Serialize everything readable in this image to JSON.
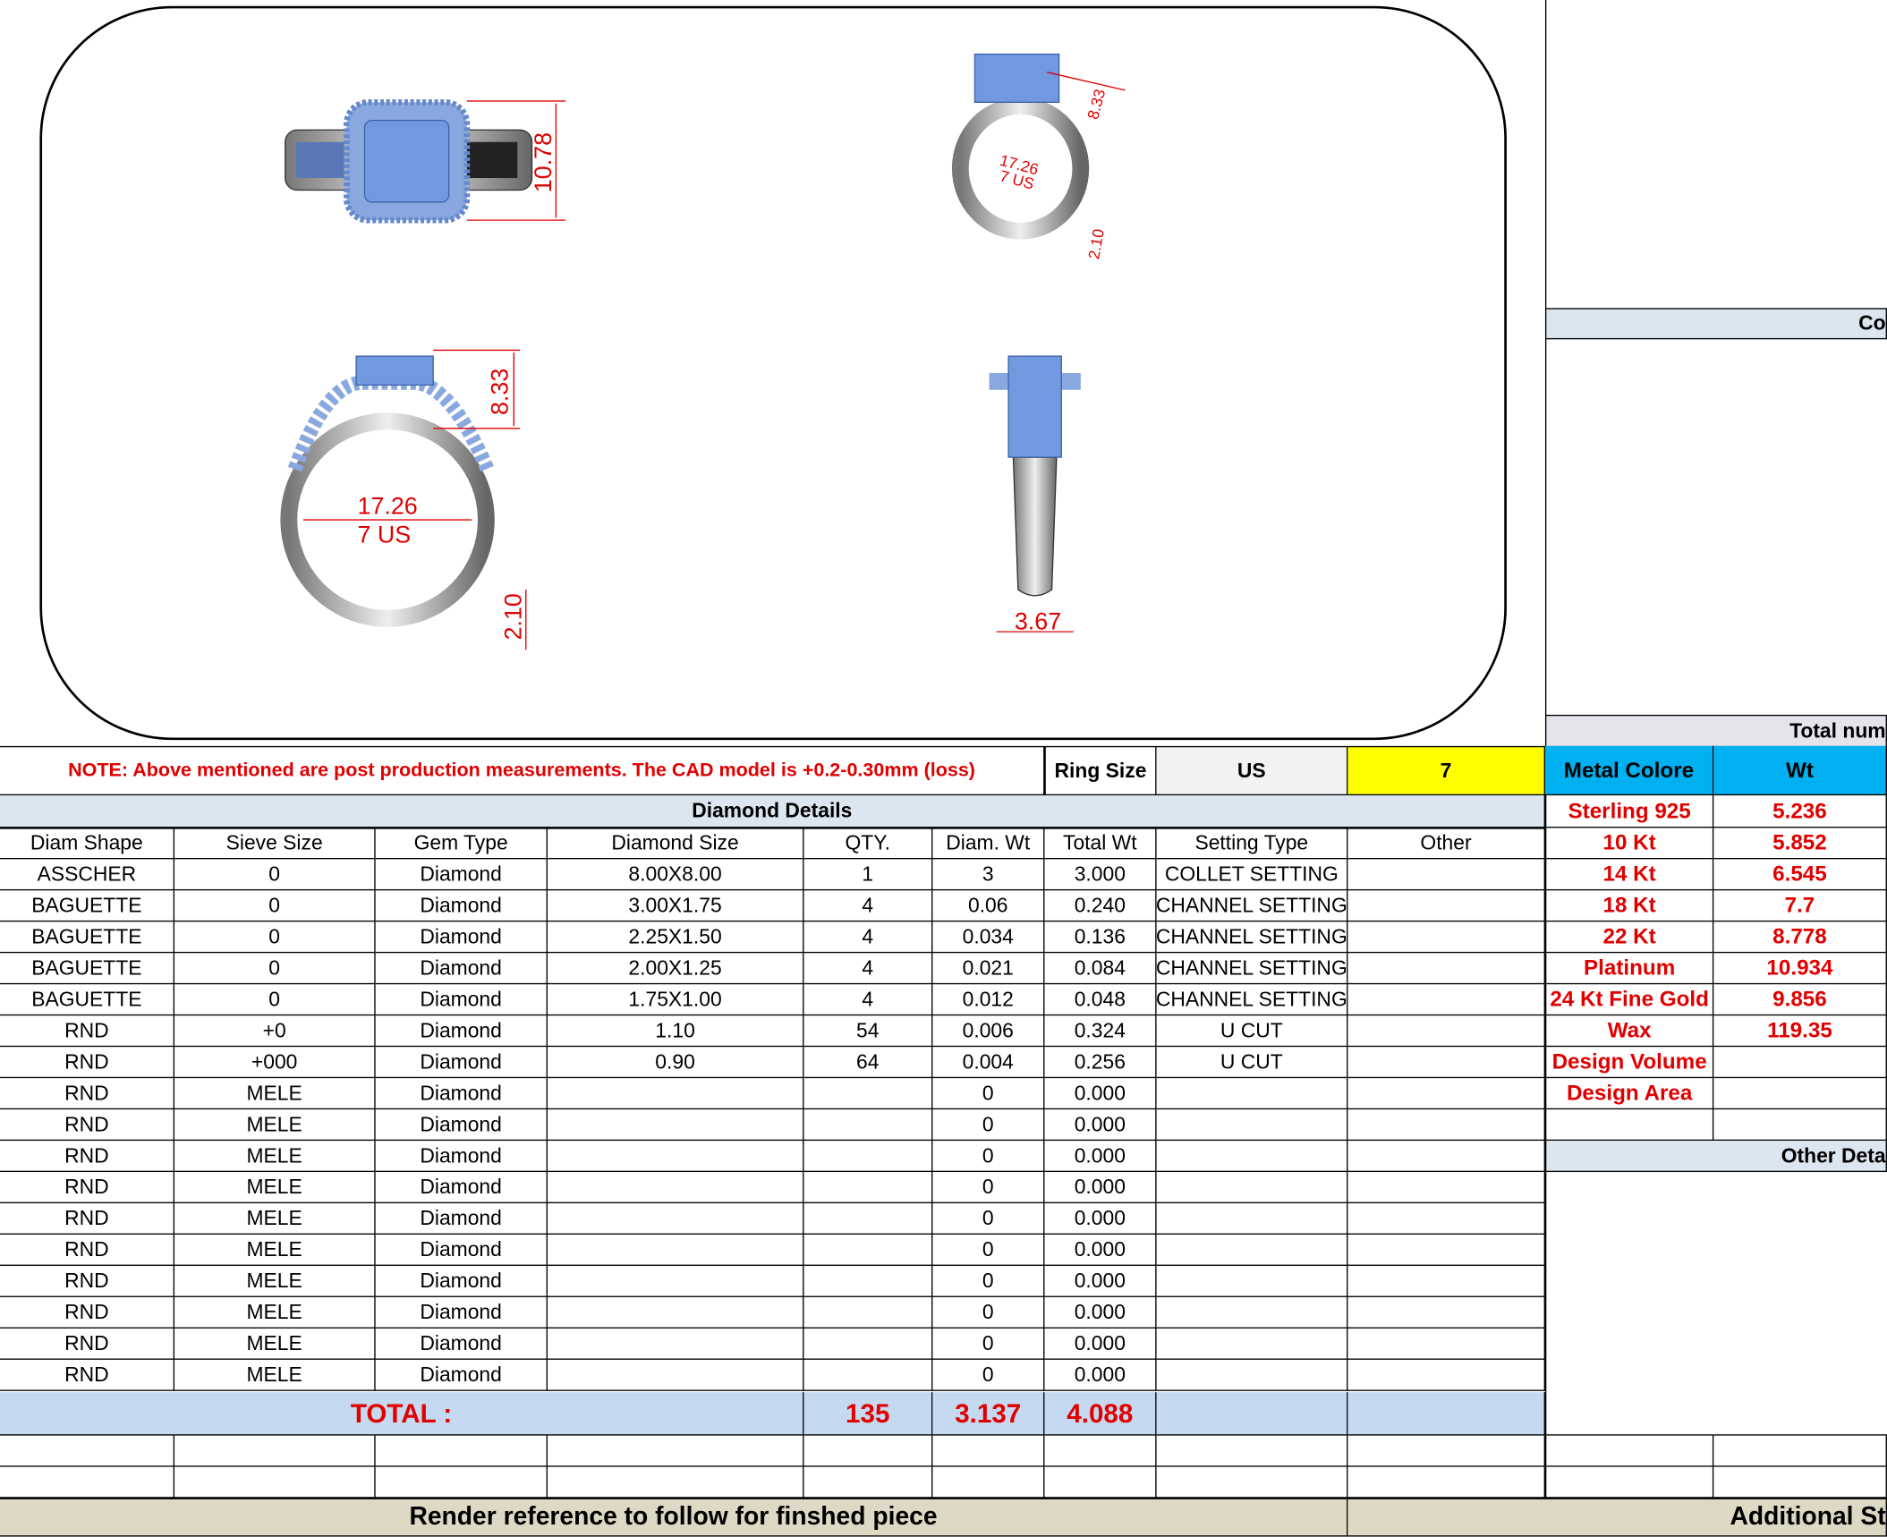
{
  "drawing": {
    "views": [
      {
        "name": "top-view",
        "dims": [
          "10.78"
        ]
      },
      {
        "name": "perspective-view",
        "dims": [
          "8.33",
          "17.26",
          "7 US",
          "2.10"
        ]
      },
      {
        "name": "front-view",
        "dims": [
          "8.33",
          "17.26",
          "7 US",
          "2.10"
        ]
      },
      {
        "name": "side-view",
        "dims": [
          "3.67"
        ]
      }
    ]
  },
  "note": "NOTE: Above mentioned are post production measurements. The CAD model is +0.2-0.30mm (loss)",
  "ring_size": {
    "label": "Ring Size",
    "system": "US",
    "value": "7"
  },
  "diamond_details": {
    "title": "Diamond Details",
    "headers": [
      "Diam Shape",
      "Sieve Size",
      "Gem Type",
      "Diamond Size",
      "QTY.",
      "Diam. Wt",
      "Total Wt",
      "Setting Type",
      "Other"
    ],
    "rows": [
      [
        "ASSCHER",
        "0",
        "Diamond",
        "8.00X8.00",
        "1",
        "3",
        "3.000",
        "COLLET SETTING",
        ""
      ],
      [
        "BAGUETTE",
        "0",
        "Diamond",
        "3.00X1.75",
        "4",
        "0.06",
        "0.240",
        "CHANNEL SETTING",
        ""
      ],
      [
        "BAGUETTE",
        "0",
        "Diamond",
        "2.25X1.50",
        "4",
        "0.034",
        "0.136",
        "CHANNEL SETTING",
        ""
      ],
      [
        "BAGUETTE",
        "0",
        "Diamond",
        "2.00X1.25",
        "4",
        "0.021",
        "0.084",
        "CHANNEL SETTING",
        ""
      ],
      [
        "BAGUETTE",
        "0",
        "Diamond",
        "1.75X1.00",
        "4",
        "0.012",
        "0.048",
        "CHANNEL SETTING",
        ""
      ],
      [
        "RND",
        "+0",
        "Diamond",
        "1.10",
        "54",
        "0.006",
        "0.324",
        "U CUT",
        ""
      ],
      [
        "RND",
        "+000",
        "Diamond",
        "0.90",
        "64",
        "0.004",
        "0.256",
        "U CUT",
        ""
      ],
      [
        "RND",
        "MELE",
        "Diamond",
        "",
        "",
        "0",
        "0.000",
        "",
        ""
      ],
      [
        "RND",
        "MELE",
        "Diamond",
        "",
        "",
        "0",
        "0.000",
        "",
        ""
      ],
      [
        "RND",
        "MELE",
        "Diamond",
        "",
        "",
        "0",
        "0.000",
        "",
        ""
      ],
      [
        "RND",
        "MELE",
        "Diamond",
        "",
        "",
        "0",
        "0.000",
        "",
        ""
      ],
      [
        "RND",
        "MELE",
        "Diamond",
        "",
        "",
        "0",
        "0.000",
        "",
        ""
      ],
      [
        "RND",
        "MELE",
        "Diamond",
        "",
        "",
        "0",
        "0.000",
        "",
        ""
      ],
      [
        "RND",
        "MELE",
        "Diamond",
        "",
        "",
        "0",
        "0.000",
        "",
        ""
      ],
      [
        "RND",
        "MELE",
        "Diamond",
        "",
        "",
        "0",
        "0.000",
        "",
        ""
      ],
      [
        "RND",
        "MELE",
        "Diamond",
        "",
        "",
        "0",
        "0.000",
        "",
        ""
      ],
      [
        "RND",
        "MELE",
        "Diamond",
        "",
        "",
        "0",
        "0.000",
        "",
        ""
      ]
    ],
    "total": {
      "label": "TOTAL :",
      "qty": "135",
      "diam_wt": "3.137",
      "total_wt": "4.088"
    }
  },
  "right_panel": {
    "section_top": "Co",
    "total_number": "Total num",
    "metal_header": [
      "Metal Colore",
      "Wt"
    ],
    "metals": [
      [
        "Sterling 925",
        "5.236"
      ],
      [
        "10 Kt",
        "5.852"
      ],
      [
        "14 Kt",
        "6.545"
      ],
      [
        "18 Kt",
        "7.7"
      ],
      [
        "22 Kt",
        "8.778"
      ],
      [
        "Platinum",
        "10.934"
      ],
      [
        "24 Kt Fine Gold",
        "9.856"
      ],
      [
        "Wax",
        "119.35"
      ],
      [
        "Design Volume",
        ""
      ],
      [
        "Design Area",
        ""
      ],
      [
        "",
        ""
      ]
    ],
    "other_details": "Other Deta"
  },
  "footer": {
    "render_ref": "Render reference to follow for finshed piece",
    "additional": "Additional St"
  },
  "colors": {
    "header_blue": "#00b0f0",
    "ring_size_yellow": "#ffff00",
    "section_blue": "#dce6f1",
    "total_blue": "#c5d9f1",
    "footer_tan": "#ddd9c4",
    "text_red": "#e00000"
  }
}
